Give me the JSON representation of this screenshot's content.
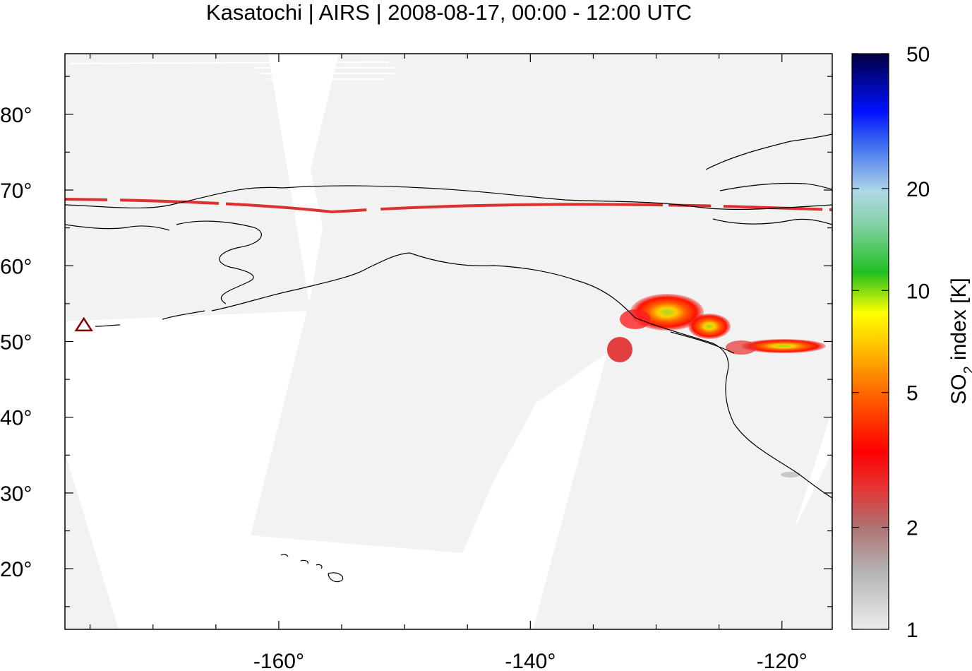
{
  "title": "Kasatochi | AIRS | 2008-08-17, 00:00 - 12:00 UTC",
  "map": {
    "lon_range": [
      -177,
      -116
    ],
    "lat_range": [
      12,
      88
    ],
    "x_ticks": [
      "-160°",
      "-140°",
      "-120°"
    ],
    "x_tick_values": [
      -160,
      -140,
      -120
    ],
    "y_ticks": [
      "20°",
      "30°",
      "40°",
      "50°",
      "60°",
      "70°",
      "80°"
    ],
    "y_tick_values": [
      20,
      30,
      40,
      50,
      60,
      70,
      80
    ],
    "volcano_marker": {
      "name": "Kasatochi",
      "lon": -175.5,
      "lat": 52.2,
      "color": "#8b0000"
    },
    "swath_color": "#f2f2f2",
    "coastline_color": "#000000"
  },
  "colorbar": {
    "label_prefix": "SO",
    "label_sub": "2",
    "label_suffix": " index [K]",
    "tick_labels": [
      "1",
      "2",
      "5",
      "10",
      "20",
      "50"
    ],
    "tick_values": [
      1,
      2,
      5,
      10,
      20,
      50
    ],
    "scale": "log",
    "range": [
      1,
      50
    ],
    "colors": [
      "#e8e8e8",
      "#9a9a9a",
      "#c86464",
      "#ff0000",
      "#ff7000",
      "#ffff00",
      "#10c010",
      "#88cccc",
      "#a8c8f0",
      "#0020ff",
      "#000050"
    ]
  }
}
